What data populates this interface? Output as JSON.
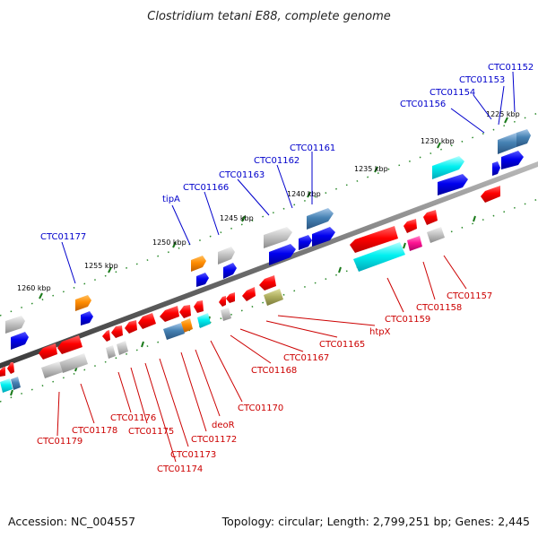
{
  "title": "Clostridium tetani E88, complete genome",
  "footer": {
    "accession": "Accession: NC_004557",
    "summary": "Topology: circular; Length: 2,799,251 bp; Genes: 2,445"
  },
  "ticks": [
    "1225 kbp",
    "1230 kbp",
    "1235 kbp",
    "1240 kbp",
    "1245 kbp",
    "1250 kbp",
    "1255 kbp",
    "1260 kbp"
  ],
  "labels_forward": [
    "CTC01152",
    "CTC01153",
    "CTC01154",
    "CTC01156",
    "CTC01161",
    "CTC01162",
    "CTC01163",
    "CTC01166",
    "tipA",
    "CTC01177"
  ],
  "labels_reverse": [
    "CTC01157",
    "CTC01158",
    "CTC01159",
    "htpX",
    "CTC01165",
    "CTC01167",
    "CTC01168",
    "CTC01170",
    "deoR",
    "CTC01172",
    "CTC01173",
    "CTC01174",
    "CTC01175",
    "CTC01176",
    "CTC01178",
    "CTC01179"
  ],
  "colors": {
    "forward_label": "#0000cc",
    "reverse_label": "#cc0000",
    "backbone": "#777777",
    "tick": "#1a7a1a"
  }
}
